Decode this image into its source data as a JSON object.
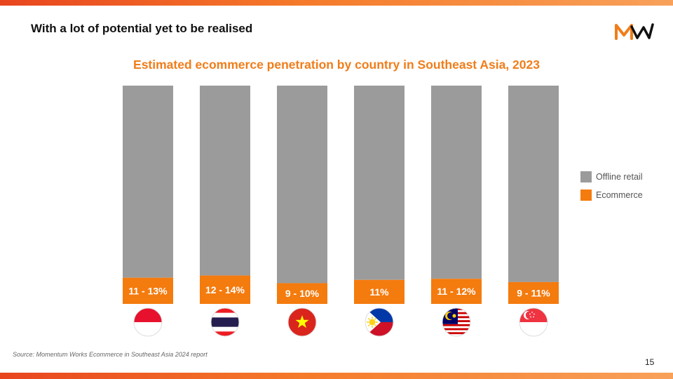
{
  "slide": {
    "title": "With a lot of potential yet to be realised",
    "page_number": "15",
    "source": "Source: Momentum Works Ecommerce in Southeast Asia 2024 report"
  },
  "logo": {
    "icon": "momentum-works-logo",
    "colors": {
      "orange": "#f07d1a",
      "black": "#111111"
    }
  },
  "colors": {
    "offline": "#9b9b9b",
    "ecommerce": "#f47b0e",
    "accent_title": "#f07d1a"
  },
  "chart_data": {
    "type": "bar",
    "stacked": true,
    "title": "Estimated ecommerce penetration by country in Southeast Asia, 2023",
    "categories": [
      "Indonesia",
      "Thailand",
      "Vietnam",
      "Philippines",
      "Malaysia",
      "Singapore"
    ],
    "flags": [
      "indonesia-flag-icon",
      "thailand-flag-icon",
      "vietnam-flag-icon",
      "philippines-flag-icon",
      "malaysia-flag-icon",
      "singapore-flag-icon"
    ],
    "ylim": [
      0,
      100
    ],
    "series": [
      {
        "name": "Ecommerce",
        "values": [
          12,
          13,
          9.5,
          11,
          11.5,
          10
        ],
        "labels": [
          "11 - 13%",
          "12 - 14%",
          "9 - 10%",
          "11%",
          "11 - 12%",
          "9 - 11%"
        ],
        "color": "#f47b0e"
      },
      {
        "name": "Offline retail",
        "values": [
          88,
          87,
          90.5,
          89,
          88.5,
          90
        ],
        "color": "#9b9b9b"
      }
    ],
    "legend": {
      "position": "right",
      "entries": [
        "Offline retail",
        "Ecommerce"
      ]
    },
    "grid": false
  }
}
